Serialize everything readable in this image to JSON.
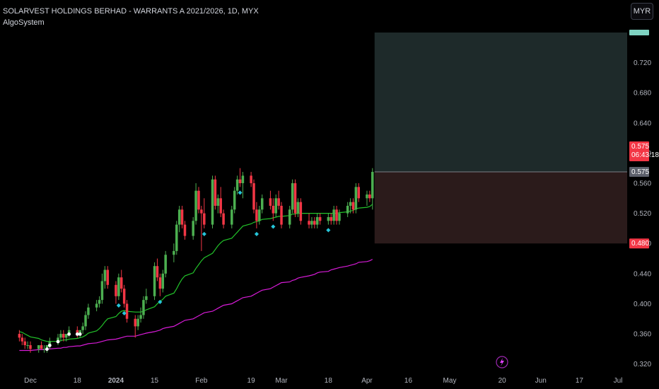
{
  "header": {
    "title": "SOLARVEST HOLDINGS BERHAD - WARRANTS A 2021/2026, 1D, MYX",
    "indicator": "AlgoSystem",
    "currency": "MYR"
  },
  "price_tags": {
    "last_price": "0.575",
    "countdown": "06:43:18",
    "entry_price": "0.575",
    "stop_price": "0.480",
    "target_price": "0.760"
  },
  "colors": {
    "background": "#000000",
    "up": "#4caf50",
    "down": "#f23645",
    "ma_fast": "#22c32a",
    "ma_slow": "#d81bd8",
    "target_zone": "#1e2a2a",
    "stop_zone": "#2b1b1b",
    "price_tag_red": "#f23645",
    "price_tag_grey": "#5d606b",
    "signal_cyan": "#26c6da",
    "signal_white": "#ffffff"
  },
  "chart_data": {
    "type": "candlestick",
    "x_ticks": [
      "Dec",
      "18",
      "2024",
      "15",
      "Feb",
      "19",
      "Mar",
      "18",
      "Apr",
      "16",
      "May",
      "20",
      "Jun",
      "17",
      "Jul"
    ],
    "y_ticks": [
      "0.320",
      "0.360",
      "0.400",
      "0.440",
      "0.480",
      "0.520",
      "0.560",
      "0.600",
      "0.640",
      "0.680",
      "0.720"
    ],
    "ylim": [
      0.315,
      0.775
    ],
    "start_date": "2023-11-27",
    "x_tick_dates": [
      "2023-12-01",
      "2023-12-18",
      "2024-01-01",
      "2024-01-15",
      "2024-02-01",
      "2024-02-19",
      "2024-03-01",
      "2024-03-18",
      "2024-04-01",
      "2024-04-16",
      "2024-05-01",
      "2024-05-20",
      "2024-06-03",
      "2024-06-17",
      "2024-07-01"
    ],
    "candles": [
      [
        0.36,
        0.365,
        0.35,
        0.355
      ],
      [
        0.355,
        0.36,
        0.345,
        0.35
      ],
      [
        0.35,
        0.355,
        0.34,
        0.345
      ],
      [
        0.345,
        0.35,
        0.34,
        0.345
      ],
      [
        0.345,
        0.35,
        0.335,
        0.34
      ],
      [
        0.34,
        0.345,
        0.335,
        0.345
      ],
      [
        0.345,
        0.35,
        0.34,
        0.34
      ],
      [
        0.34,
        0.345,
        0.335,
        0.34
      ],
      [
        0.34,
        0.345,
        0.335,
        0.345
      ],
      [
        0.345,
        0.355,
        0.34,
        0.35
      ],
      [
        0.35,
        0.36,
        0.345,
        0.355
      ],
      [
        0.355,
        0.365,
        0.35,
        0.36
      ],
      [
        0.36,
        0.365,
        0.35,
        0.355
      ],
      [
        0.355,
        0.36,
        0.35,
        0.36
      ],
      [
        0.36,
        0.37,
        0.355,
        0.365
      ],
      [
        0.365,
        0.37,
        0.355,
        0.36
      ],
      [
        0.36,
        0.365,
        0.355,
        0.365
      ],
      [
        0.365,
        0.375,
        0.36,
        0.37
      ],
      [
        0.37,
        0.39,
        0.365,
        0.385
      ],
      [
        0.385,
        0.4,
        0.38,
        0.395
      ],
      [
        0.395,
        0.405,
        0.39,
        0.4
      ],
      [
        0.4,
        0.41,
        0.395,
        0.405
      ],
      [
        0.405,
        0.44,
        0.4,
        0.43
      ],
      [
        0.43,
        0.45,
        0.42,
        0.445
      ],
      [
        0.445,
        0.45,
        0.42,
        0.425
      ],
      [
        0.425,
        0.43,
        0.4,
        0.41
      ],
      [
        0.41,
        0.44,
        0.405,
        0.435
      ],
      [
        0.435,
        0.445,
        0.415,
        0.42
      ],
      [
        0.42,
        0.425,
        0.395,
        0.4
      ],
      [
        0.4,
        0.405,
        0.375,
        0.38
      ],
      [
        0.38,
        0.385,
        0.355,
        0.37
      ],
      [
        0.37,
        0.385,
        0.365,
        0.38
      ],
      [
        0.38,
        0.395,
        0.375,
        0.385
      ],
      [
        0.385,
        0.41,
        0.38,
        0.405
      ],
      [
        0.405,
        0.42,
        0.4,
        0.41
      ],
      [
        0.41,
        0.455,
        0.405,
        0.45
      ],
      [
        0.45,
        0.46,
        0.43,
        0.435
      ],
      [
        0.435,
        0.44,
        0.41,
        0.42
      ],
      [
        0.42,
        0.445,
        0.415,
        0.44
      ],
      [
        0.44,
        0.47,
        0.435,
        0.465
      ],
      [
        0.465,
        0.48,
        0.455,
        0.47
      ],
      [
        0.47,
        0.51,
        0.465,
        0.505
      ],
      [
        0.505,
        0.53,
        0.495,
        0.525
      ],
      [
        0.525,
        0.53,
        0.5,
        0.505
      ],
      [
        0.505,
        0.51,
        0.485,
        0.49
      ],
      [
        0.49,
        0.515,
        0.485,
        0.51
      ],
      [
        0.51,
        0.56,
        0.505,
        0.55
      ],
      [
        0.55,
        0.555,
        0.52,
        0.525
      ],
      [
        0.525,
        0.53,
        0.47,
        0.52
      ],
      [
        0.52,
        0.54,
        0.5,
        0.505
      ],
      [
        0.505,
        0.57,
        0.5,
        0.565
      ],
      [
        0.565,
        0.57,
        0.525,
        0.53
      ],
      [
        0.53,
        0.545,
        0.52,
        0.54
      ],
      [
        0.54,
        0.555,
        0.515,
        0.52
      ],
      [
        0.52,
        0.525,
        0.5,
        0.505
      ],
      [
        0.505,
        0.53,
        0.5,
        0.525
      ],
      [
        0.525,
        0.555,
        0.52,
        0.55
      ],
      [
        0.55,
        0.57,
        0.545,
        0.565
      ],
      [
        0.565,
        0.58,
        0.555,
        0.56
      ],
      [
        0.56,
        0.575,
        0.54,
        0.57
      ],
      [
        0.57,
        0.575,
        0.555,
        0.56
      ],
      [
        0.56,
        0.565,
        0.52,
        0.525
      ],
      [
        0.525,
        0.535,
        0.5,
        0.51
      ],
      [
        0.51,
        0.53,
        0.505,
        0.525
      ],
      [
        0.525,
        0.545,
        0.52,
        0.54
      ],
      [
        0.54,
        0.55,
        0.525,
        0.53
      ],
      [
        0.53,
        0.54,
        0.51,
        0.52
      ],
      [
        0.52,
        0.545,
        0.515,
        0.54
      ],
      [
        0.54,
        0.55,
        0.525,
        0.53
      ],
      [
        0.53,
        0.535,
        0.5,
        0.505
      ],
      [
        0.505,
        0.53,
        0.5,
        0.525
      ],
      [
        0.525,
        0.565,
        0.52,
        0.56
      ],
      [
        0.56,
        0.565,
        0.515,
        0.52
      ],
      [
        0.52,
        0.54,
        0.515,
        0.535
      ],
      [
        0.535,
        0.54,
        0.505,
        0.51
      ],
      [
        0.51,
        0.52,
        0.5,
        0.505
      ],
      [
        0.505,
        0.515,
        0.5,
        0.51
      ],
      [
        0.51,
        0.515,
        0.5,
        0.505
      ],
      [
        0.505,
        0.52,
        0.5,
        0.515
      ],
      [
        0.515,
        0.52,
        0.505,
        0.51
      ],
      [
        0.51,
        0.52,
        0.505,
        0.515
      ],
      [
        0.515,
        0.52,
        0.505,
        0.51
      ],
      [
        0.51,
        0.53,
        0.505,
        0.525
      ],
      [
        0.525,
        0.53,
        0.505,
        0.51
      ],
      [
        0.51,
        0.525,
        0.505,
        0.52
      ],
      [
        0.52,
        0.535,
        0.515,
        0.53
      ],
      [
        0.53,
        0.54,
        0.52,
        0.535
      ],
      [
        0.535,
        0.54,
        0.52,
        0.525
      ],
      [
        0.525,
        0.56,
        0.52,
        0.555
      ],
      [
        0.555,
        0.56,
        0.535,
        0.54
      ],
      [
        0.54,
        0.55,
        0.53,
        0.545
      ],
      [
        0.545,
        0.55,
        0.535,
        0.54
      ],
      [
        0.54,
        0.58,
        0.525,
        0.575
      ]
    ],
    "ma_fast": [
      0.363,
      0.362,
      0.36,
      0.358,
      0.356,
      0.354,
      0.352,
      0.351,
      0.35,
      0.35,
      0.35,
      0.351,
      0.352,
      0.352,
      0.353,
      0.354,
      0.355,
      0.356,
      0.358,
      0.361,
      0.364,
      0.367,
      0.371,
      0.376,
      0.38,
      0.383,
      0.387,
      0.39,
      0.391,
      0.39,
      0.389,
      0.389,
      0.389,
      0.39,
      0.392,
      0.396,
      0.4,
      0.403,
      0.406,
      0.41,
      0.414,
      0.42,
      0.427,
      0.433,
      0.437,
      0.441,
      0.447,
      0.452,
      0.457,
      0.461,
      0.467,
      0.472,
      0.477,
      0.481,
      0.484,
      0.487,
      0.491,
      0.495,
      0.499,
      0.503,
      0.506,
      0.508,
      0.509,
      0.51,
      0.512,
      0.513,
      0.514,
      0.515,
      0.516,
      0.516,
      0.517,
      0.519,
      0.519,
      0.52,
      0.52,
      0.52,
      0.52,
      0.52,
      0.52,
      0.52,
      0.52,
      0.52,
      0.52,
      0.52,
      0.521,
      0.522,
      0.523,
      0.524,
      0.526,
      0.527,
      0.528,
      0.529,
      0.532
    ],
    "ma_slow": [
      0.338,
      0.338,
      0.338,
      0.338,
      0.338,
      0.339,
      0.339,
      0.339,
      0.34,
      0.34,
      0.341,
      0.341,
      0.342,
      0.342,
      0.343,
      0.344,
      0.344,
      0.345,
      0.346,
      0.347,
      0.348,
      0.349,
      0.35,
      0.351,
      0.352,
      0.353,
      0.354,
      0.355,
      0.356,
      0.357,
      0.357,
      0.358,
      0.359,
      0.36,
      0.361,
      0.363,
      0.364,
      0.365,
      0.367,
      0.368,
      0.37,
      0.372,
      0.374,
      0.376,
      0.378,
      0.38,
      0.382,
      0.384,
      0.386,
      0.388,
      0.39,
      0.392,
      0.394,
      0.396,
      0.398,
      0.4,
      0.402,
      0.404,
      0.406,
      0.408,
      0.41,
      0.412,
      0.414,
      0.416,
      0.418,
      0.42,
      0.422,
      0.424,
      0.426,
      0.428,
      0.429,
      0.431,
      0.432,
      0.434,
      0.435,
      0.437,
      0.438,
      0.439,
      0.441,
      0.442,
      0.443,
      0.445,
      0.446,
      0.447,
      0.448,
      0.45,
      0.451,
      0.452,
      0.453,
      0.455,
      0.456,
      0.457,
      0.459
    ]
  }
}
